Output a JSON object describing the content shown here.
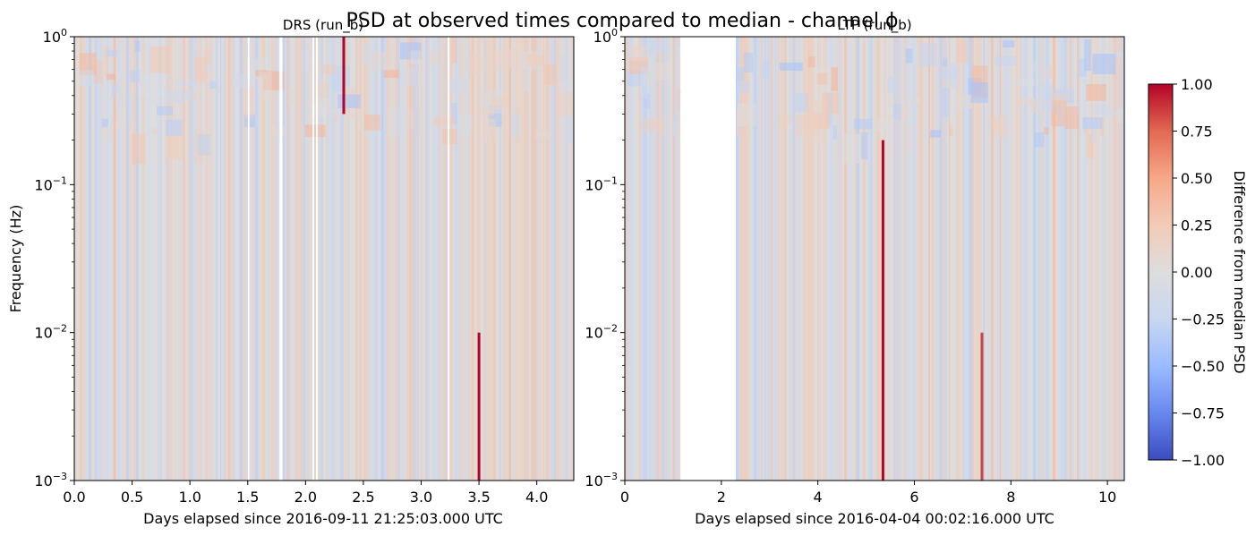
{
  "chart_data": {
    "type": "heatmap",
    "title": "PSD at observed times compared to median - channel ϕ",
    "colormap": [
      "#3b4cc0",
      "#6788ee",
      "#9abbff",
      "#c9d7f0",
      "#dddddd",
      "#f2cbb7",
      "#f7a889",
      "#e26952",
      "#b40426"
    ],
    "yscale": "log",
    "ylim": [
      0.001,
      1
    ],
    "yticks": [
      "10^-3",
      "10^-2",
      "10^-1",
      "10^0"
    ],
    "grid": false,
    "panels": [
      {
        "subtitle": "DRS (run_b)",
        "ylabel": "Frequency (Hz)",
        "xlabel": "Days elapsed since 2016-09-11 21:25:03.000 UTC",
        "xlim": [
          0,
          4.32
        ],
        "xticks": [
          "0.0",
          "0.5",
          "1.0",
          "1.5",
          "2.0",
          "2.5",
          "3.0",
          "3.5",
          "4.0"
        ],
        "gaps": [
          [
            1.5,
            1.515
          ],
          [
            1.775,
            1.8
          ],
          [
            2.06,
            2.075
          ],
          [
            2.09,
            2.105
          ],
          [
            3.23,
            3.245
          ]
        ],
        "features": [
          {
            "x": 2.33,
            "fmin": 0.3,
            "fmax": 1.0,
            "value": 1.0
          },
          {
            "x": 3.5,
            "fmin": 0.001,
            "fmax": 0.01,
            "value": 1.0
          }
        ]
      },
      {
        "subtitle": "LTP (run_b)",
        "xlabel": "Days elapsed since 2016-04-04 00:02:16.000 UTC",
        "xlim": [
          0,
          10.35
        ],
        "xticks": [
          "0",
          "2",
          "4",
          "6",
          "8",
          "10"
        ],
        "gaps": [
          [
            1.15,
            2.3
          ]
        ],
        "features": [
          {
            "x": 5.35,
            "fmin": 0.001,
            "fmax": 0.2,
            "value": 1.0
          },
          {
            "x": 7.4,
            "fmin": 0.001,
            "fmax": 0.01,
            "value": 0.85
          }
        ]
      }
    ],
    "colorbar": {
      "label": "Difference from median PSD",
      "range": [
        -1.0,
        1.0
      ],
      "ticks": [
        "1.00",
        "0.75",
        "0.50",
        "0.25",
        "0.00",
        "−0.25",
        "−0.50",
        "−0.75",
        "−1.00"
      ]
    }
  }
}
